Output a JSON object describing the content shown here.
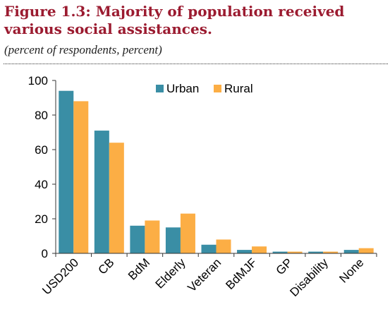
{
  "figure": {
    "title": "Figure 1.3: Majority of population received various social assistances.",
    "subtitle": "(percent of respondents, percent)"
  },
  "colors": {
    "urban": "#3a8ea5",
    "rural": "#fcae45",
    "axis": "#333333",
    "text": "#000000"
  },
  "chart_data": {
    "type": "bar",
    "title": "",
    "xlabel": "",
    "ylabel": "",
    "categories": [
      "USD200",
      "CB",
      "BdM",
      "Elderly",
      "Veteran",
      "BdMJF",
      "GP",
      "Disability",
      "None"
    ],
    "series": [
      {
        "name": "Urban",
        "values": [
          94,
          71,
          16,
          15,
          5,
          2,
          1,
          1,
          2
        ]
      },
      {
        "name": "Rural",
        "values": [
          88,
          64,
          19,
          23,
          8,
          4,
          1,
          1,
          3
        ]
      }
    ],
    "ylim": [
      0,
      100
    ],
    "yticks": [
      0,
      20,
      40,
      60,
      80,
      100
    ],
    "grid": false,
    "legend": "top-right"
  }
}
